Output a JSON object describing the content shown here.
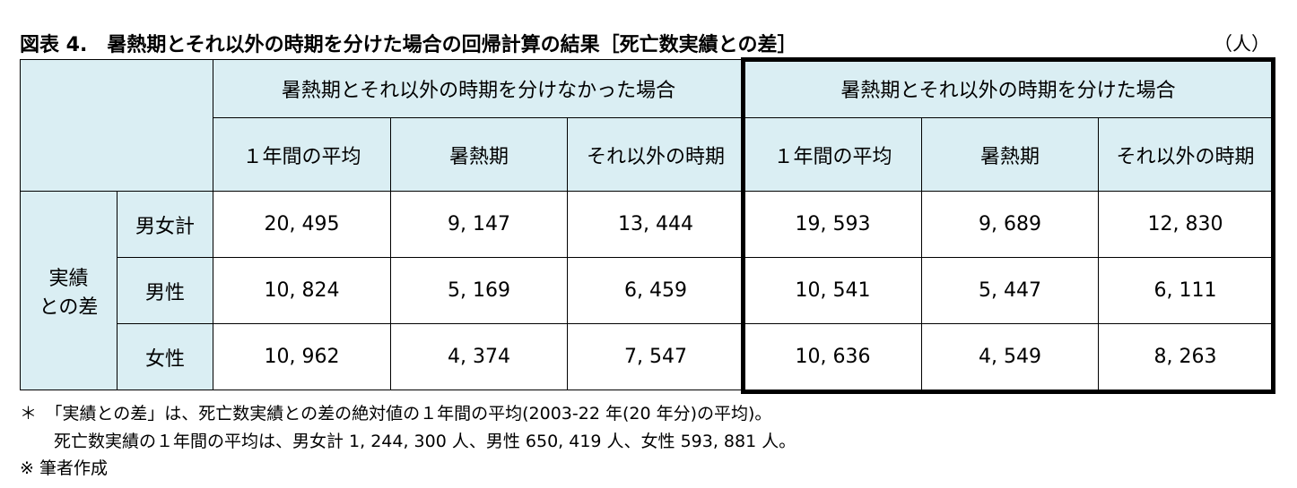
{
  "header": {
    "title": "図表 4.　暑熱期とそれ以外の時期を分けた場合の回帰計算の結果［死亡数実績との差］",
    "unit": "（人）"
  },
  "table": {
    "group_headers": [
      "暑熱期とそれ以外の時期を分けなかった場合",
      "暑熱期とそれ以外の時期を分けた場合"
    ],
    "sub_headers": [
      "１年間の平均",
      "暑熱期",
      "それ以外の時期",
      "１年間の平均",
      "暑熱期",
      "それ以外の時期"
    ],
    "row_group": [
      "実績",
      "との差"
    ],
    "rows": [
      {
        "label": "男女計",
        "values": [
          "20, 495",
          "9, 147",
          "13, 444",
          "19, 593",
          "9, 689",
          "12, 830"
        ]
      },
      {
        "label": "男性",
        "values": [
          "10, 824",
          "5, 169",
          "6, 459",
          "10, 541",
          "5, 447",
          "6, 111"
        ]
      },
      {
        "label": "女性",
        "values": [
          "10, 962",
          "4, 374",
          "7, 547",
          "10, 636",
          "4, 549",
          "8, 263"
        ]
      }
    ]
  },
  "notes": [
    "＊　「実績との差」は、死亡数実績との差の絶対値の１年間の平均(2003-22 年(20 年分)の平均)。",
    "　　死亡数実績の１年間の平均は、男女計 1, 244, 300 人、男性 650, 419 人、女性 593, 881 人。",
    "※ 筆者作成"
  ]
}
